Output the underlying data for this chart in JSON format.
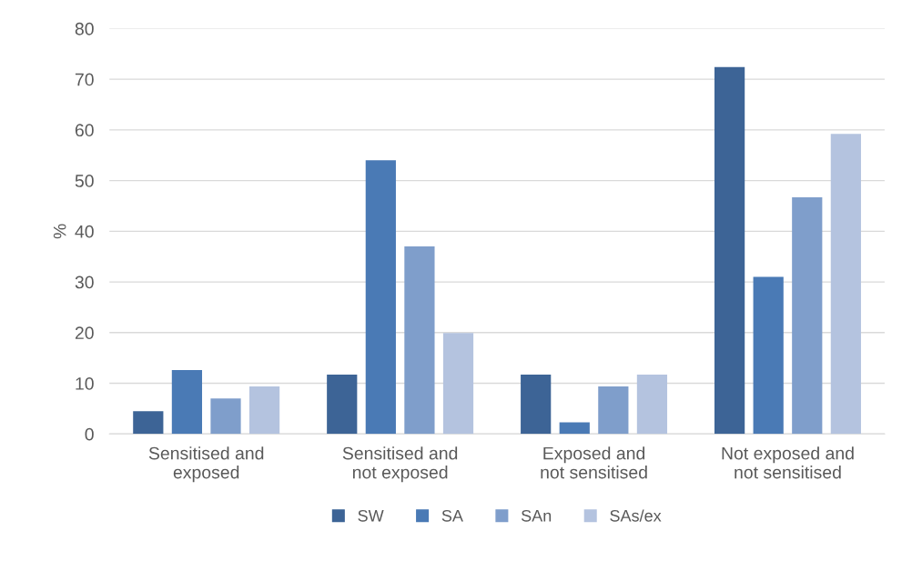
{
  "chart_data": {
    "type": "bar",
    "ylabel": "%",
    "categories": [
      "Sensitised and exposed",
      "Sensitised and not exposed",
      "Exposed and not sensitised",
      "Not exposed and not sensitised"
    ],
    "series": [
      {
        "name": "SW",
        "color": "#3d6496",
        "values": [
          4.5,
          11.7,
          11.7,
          72.4
        ]
      },
      {
        "name": "SA",
        "color": "#4a7ab5",
        "values": [
          12.6,
          54.0,
          2.3,
          31.0
        ]
      },
      {
        "name": "SAn",
        "color": "#7f9ecb",
        "values": [
          7.0,
          37.0,
          9.4,
          46.7
        ]
      },
      {
        "name": "SAs/ex",
        "color": "#b4c3df",
        "values": [
          9.4,
          19.9,
          11.7,
          59.2
        ]
      }
    ],
    "ylim": [
      0,
      80
    ],
    "yticks": [
      0,
      10,
      20,
      30,
      40,
      50,
      60,
      70,
      80
    ],
    "grid": "y",
    "legend": "bottom"
  }
}
